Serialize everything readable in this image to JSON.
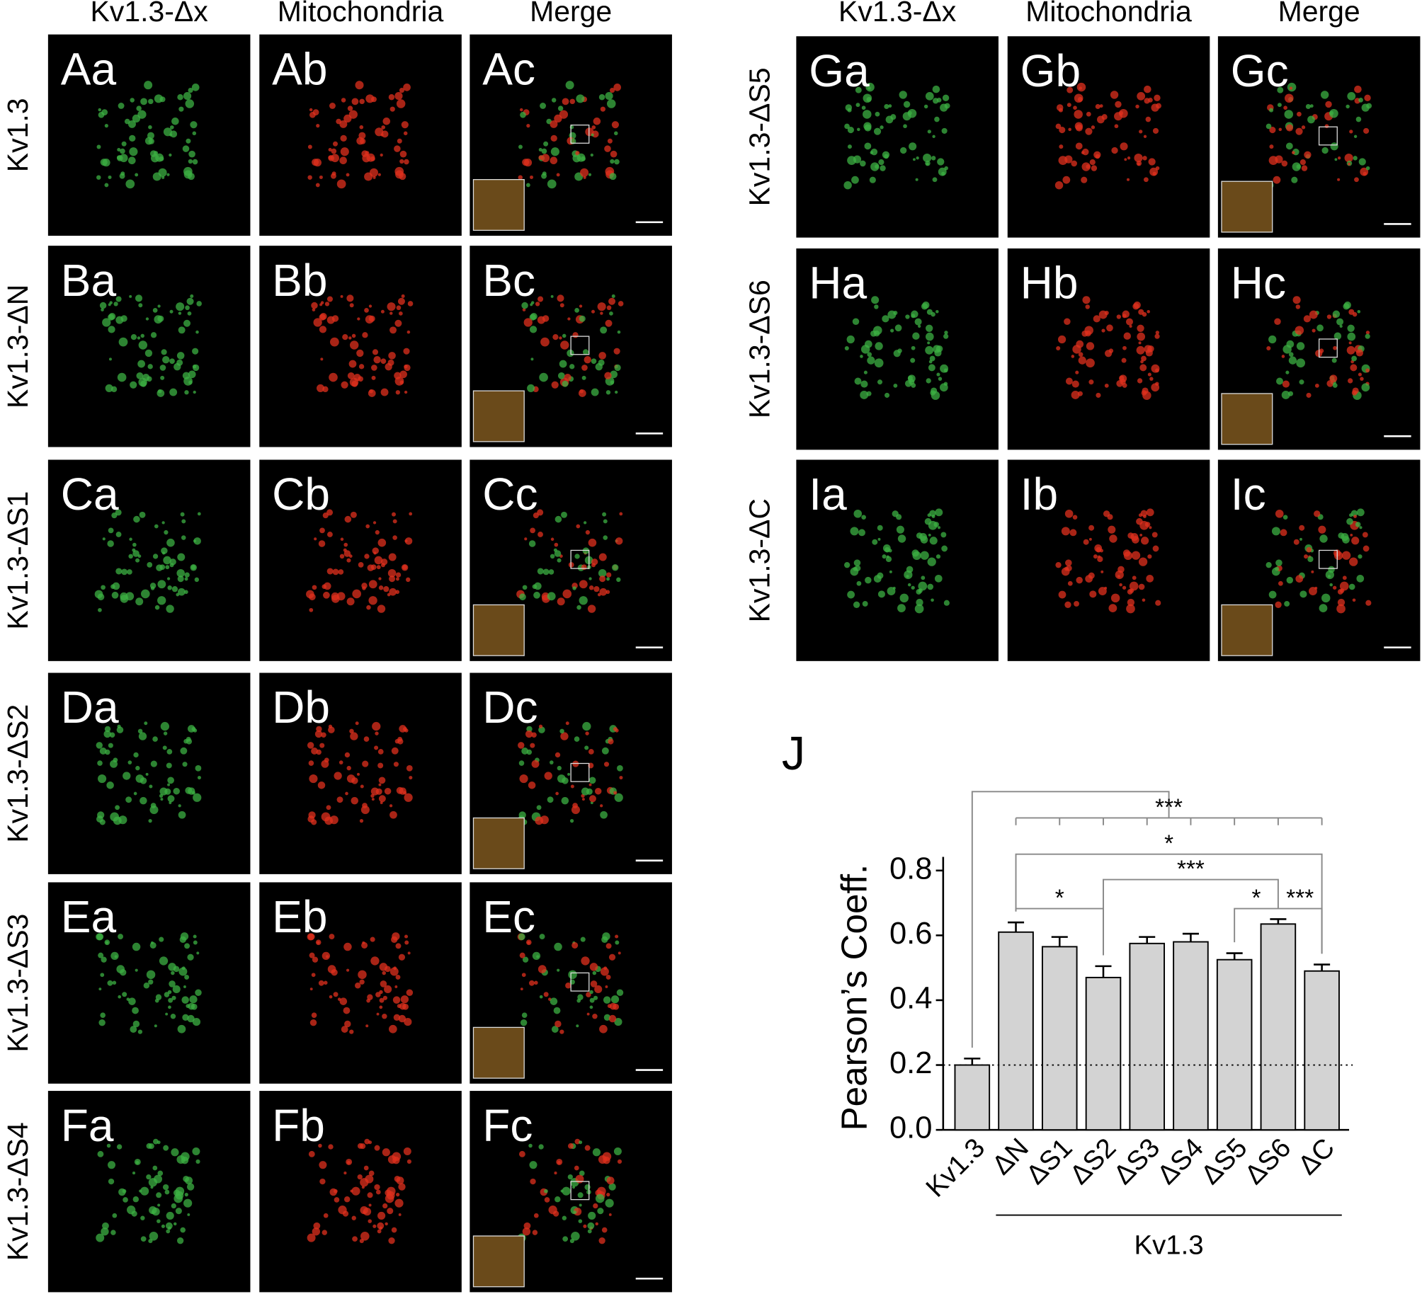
{
  "left": {
    "headers": [
      "Kv1.3-Δx",
      "Mitochondria",
      "Merge"
    ],
    "rows": [
      {
        "label": "Kv1.3",
        "panels": [
          "Aa",
          "Ab",
          "Ac"
        ]
      },
      {
        "label": "Kv1.3-ΔN",
        "panels": [
          "Ba",
          "Bb",
          "Bc"
        ]
      },
      {
        "label": "Kv1.3-ΔS1",
        "panels": [
          "Ca",
          "Cb",
          "Cc"
        ]
      },
      {
        "label": "Kv1.3-ΔS2",
        "panels": [
          "Da",
          "Db",
          "Dc"
        ]
      },
      {
        "label": "Kv1.3-ΔS3",
        "panels": [
          "Ea",
          "Eb",
          "Ec"
        ]
      },
      {
        "label": "Kv1.3-ΔS4",
        "panels": [
          "Fa",
          "Fb",
          "Fc"
        ]
      }
    ]
  },
  "right": {
    "headers": [
      "Kv1.3-Δx",
      "Mitochondria",
      "Merge"
    ],
    "rows": [
      {
        "label": "Kv1.3-ΔS5",
        "panels": [
          "Ga",
          "Gb",
          "Gc"
        ]
      },
      {
        "label": "Kv1.3-ΔS6",
        "panels": [
          "Ha",
          "Hb",
          "Hc"
        ]
      },
      {
        "label": "Kv1.3-ΔC",
        "panels": [
          "Ia",
          "Ib",
          "Ic"
        ]
      }
    ]
  },
  "chart_data": {
    "type": "bar",
    "panel_label": "J",
    "y_label": "Pearson’s Coeff.",
    "categories": [
      "Kv1.3",
      "ΔN",
      "ΔS1",
      "ΔS2",
      "ΔS3",
      "ΔS4",
      "ΔS5",
      "ΔS6",
      "ΔC"
    ],
    "values": [
      0.2,
      0.61,
      0.565,
      0.47,
      0.575,
      0.58,
      0.525,
      0.635,
      0.49
    ],
    "errors": [
      0.02,
      0.03,
      0.03,
      0.035,
      0.02,
      0.025,
      0.02,
      0.015,
      0.02
    ],
    "color": "#d3d3d3",
    "ylim": [
      0,
      0.8
    ],
    "yticks": [
      {
        "value": 0,
        "label": "0.0"
      },
      0.2,
      0.4,
      0.6,
      0.8
    ],
    "reference_line": 0.2,
    "group_label": "Kv1.3",
    "group_range": [
      1,
      8
    ],
    "significance": [
      {
        "from": 0,
        "to": [
          1,
          8
        ],
        "label": "***"
      },
      {
        "from": 1,
        "to": 8,
        "label": "*"
      },
      {
        "from": 3,
        "to": 7,
        "label": "***"
      },
      {
        "from": 1,
        "to": 3,
        "label": "*"
      },
      {
        "from": 6,
        "to": 7,
        "label": "*"
      },
      {
        "from": 7,
        "to": 8,
        "label": "***"
      }
    ]
  }
}
